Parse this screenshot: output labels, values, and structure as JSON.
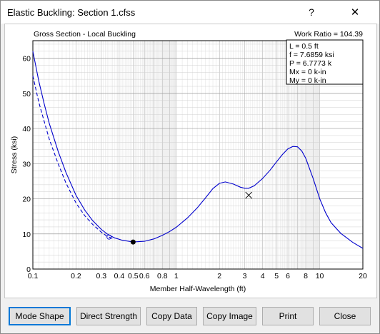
{
  "window": {
    "title": "Elastic Buckling: Section 1.cfss",
    "help_label": "?",
    "close_label": "✕"
  },
  "chart_data": {
    "type": "line",
    "title": "Gross Section - Local Buckling",
    "work_ratio_text": "Work Ratio = 104.39",
    "xlabel": "Member Half-Wavelength (ft)",
    "ylabel": "Stress (ksi)",
    "xscale": "log",
    "xlim": [
      0.1,
      20
    ],
    "ylim": [
      0,
      65
    ],
    "grid": true,
    "x_ticks": [
      0.1,
      0.2,
      0.3,
      0.4,
      0.5,
      0.6,
      0.8,
      1,
      2,
      3,
      4,
      5,
      6,
      8,
      10,
      20
    ],
    "x_tick_labels": [
      "0.1",
      "0.2",
      "0.3",
      "0.4",
      "0.5",
      "0.6",
      "0.8",
      "1",
      "2",
      "3",
      "4",
      "5",
      "6",
      "8",
      "10",
      "20"
    ],
    "y_ticks": [
      0,
      10,
      20,
      30,
      40,
      50,
      60
    ],
    "y_tick_labels": [
      "0",
      "10",
      "20",
      "30",
      "40",
      "50",
      "60"
    ],
    "series": [
      {
        "style": "solid",
        "color": "#0000cc",
        "x": [
          0.1,
          0.11,
          0.12,
          0.13,
          0.15,
          0.17,
          0.2,
          0.23,
          0.26,
          0.3,
          0.33,
          0.37,
          0.42,
          0.5,
          0.6,
          0.7,
          0.8,
          0.9,
          1.0,
          1.2,
          1.4,
          1.6,
          1.8,
          2.0,
          2.2,
          2.5,
          2.8,
          3.0,
          3.2,
          3.5,
          4.0,
          4.5,
          5.0,
          5.5,
          6.0,
          6.5,
          7.0,
          7.5,
          8.0,
          9.0,
          10,
          11,
          12,
          14,
          17,
          20
        ],
        "y": [
          62,
          53.5,
          47,
          41.5,
          33.5,
          27.5,
          21,
          16.8,
          13.9,
          11.3,
          10.0,
          8.9,
          8.2,
          7.7,
          7.9,
          8.6,
          9.6,
          10.7,
          11.9,
          14.6,
          17.4,
          20.3,
          22.9,
          24.4,
          24.8,
          24.2,
          23.3,
          23.0,
          23.0,
          23.7,
          25.8,
          28.1,
          30.5,
          32.6,
          34.2,
          34.9,
          34.8,
          33.6,
          31.5,
          25.8,
          20.0,
          16.0,
          13.2,
          10.2,
          7.6,
          5.9
        ]
      },
      {
        "style": "dashed",
        "color": "#0000cc",
        "x": [
          0.1,
          0.11,
          0.12,
          0.13,
          0.15,
          0.17,
          0.2,
          0.23,
          0.26,
          0.3,
          0.33,
          0.37
        ],
        "y": [
          55,
          47.5,
          42,
          37,
          30,
          24.5,
          18.8,
          15.2,
          12.8,
          10.5,
          9.3,
          8.5
        ]
      }
    ],
    "markers": [
      {
        "type": "filled-circle",
        "x": 0.5,
        "y": 7.69
      },
      {
        "type": "open-circle",
        "x": 0.34,
        "y": 9.1
      },
      {
        "type": "x-mark",
        "x": 3.2,
        "y": 21.0
      }
    ],
    "info_box": [
      "L = 0.5 ft",
      "f = 7.6859 ksi",
      "P = 6.7773 k",
      "Mx = 0 k-in",
      "My = 0 k-in"
    ]
  },
  "buttons": {
    "mode_shape": "Mode Shape",
    "direct_strength": "Direct Strength",
    "copy_data": "Copy Data",
    "copy_image": "Copy Image",
    "print": "Print",
    "close": "Close"
  }
}
